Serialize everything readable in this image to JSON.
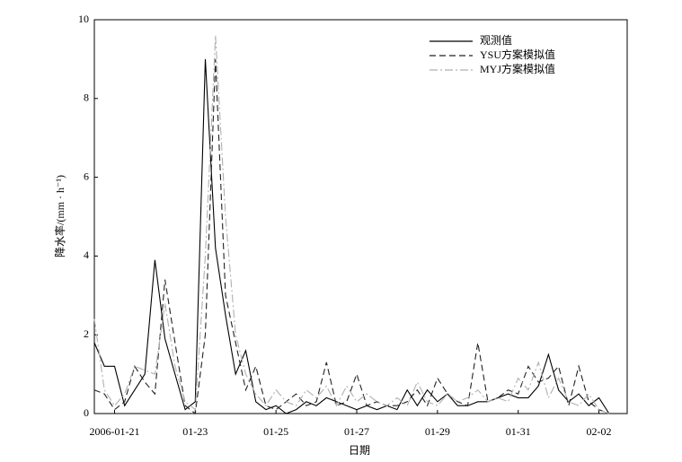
{
  "chart_data": {
    "type": "line",
    "xlabel": "日期",
    "ylabel": "降水率/(mm · h⁻¹)",
    "x": [
      -0.5,
      -0.25,
      0,
      0.25,
      0.5,
      0.75,
      1,
      1.25,
      1.5,
      1.75,
      2,
      2.25,
      2.5,
      2.75,
      3,
      3.25,
      3.5,
      3.75,
      4,
      4.25,
      4.5,
      4.75,
      5,
      5.25,
      5.5,
      5.75,
      6,
      6.25,
      6.5,
      6.75,
      7,
      7.25,
      7.5,
      7.75,
      8,
      8.25,
      8.5,
      8.75,
      9,
      9.25,
      9.5,
      9.75,
      10,
      10.25,
      10.5,
      10.75,
      11,
      11.25,
      11.5,
      11.75,
      12,
      12.25
    ],
    "series": [
      {
        "name": "观测值",
        "color": "#000000",
        "linestyle": "solid",
        "values": [
          1.8,
          1.2,
          1.2,
          0.2,
          0.6,
          1.0,
          3.9,
          1.9,
          1.0,
          0.1,
          0.3,
          9.0,
          4.2,
          2.5,
          1.0,
          1.6,
          0.3,
          0.1,
          0.2,
          0.0,
          0.1,
          0.3,
          0.2,
          0.4,
          0.3,
          0.2,
          0.1,
          0.2,
          0.1,
          0.2,
          0.1,
          0.6,
          0.2,
          0.6,
          0.3,
          0.5,
          0.2,
          0.2,
          0.3,
          0.3,
          0.4,
          0.5,
          0.4,
          0.4,
          0.7,
          1.5,
          0.6,
          0.3,
          0.5,
          0.2,
          0.4,
          0.0
        ]
      },
      {
        "name": "YSU方案模拟值",
        "color": "#222222",
        "linestyle": "dashed",
        "values": [
          0.6,
          0.5,
          0.1,
          0.3,
          1.2,
          0.8,
          0.5,
          3.4,
          1.8,
          0.2,
          0.0,
          2.0,
          9.0,
          3.0,
          1.8,
          0.6,
          1.2,
          0.2,
          0.1,
          0.3,
          0.5,
          0.2,
          0.3,
          1.3,
          0.2,
          0.3,
          1.0,
          0.2,
          0.3,
          0.2,
          0.2,
          0.3,
          0.6,
          0.2,
          0.9,
          0.5,
          0.3,
          0.2,
          1.8,
          0.3,
          0.4,
          0.6,
          0.5,
          1.2,
          0.8,
          0.9,
          1.2,
          0.2,
          1.2,
          0.3,
          0.1,
          0.0
        ]
      },
      {
        "name": "MYJ方案模拟值",
        "color": "#b0b0b0",
        "linestyle": "dashdot",
        "values": [
          2.4,
          0.6,
          0.2,
          0.5,
          1.2,
          1.1,
          1.0,
          2.8,
          1.2,
          0.3,
          0.1,
          4.0,
          9.6,
          5.0,
          2.0,
          1.0,
          0.5,
          0.2,
          0.6,
          0.3,
          0.2,
          0.6,
          0.4,
          0.7,
          0.2,
          0.7,
          0.3,
          0.5,
          0.3,
          0.2,
          0.4,
          0.2,
          0.8,
          0.3,
          0.2,
          0.5,
          0.3,
          0.4,
          0.6,
          0.3,
          0.4,
          0.3,
          0.9,
          0.6,
          1.3,
          0.4,
          0.9,
          0.3,
          0.2,
          0.5,
          0.1,
          0.0
        ]
      }
    ],
    "xlim": [
      -0.5,
      12.7
    ],
    "xticks": [
      {
        "value": 0,
        "label": "2006-01-21"
      },
      {
        "value": 2,
        "label": "01-23"
      },
      {
        "value": 4,
        "label": "01-25"
      },
      {
        "value": 6,
        "label": "01-27"
      },
      {
        "value": 8,
        "label": "01-29"
      },
      {
        "value": 10,
        "label": "01-31"
      },
      {
        "value": 12,
        "label": "02-02"
      }
    ],
    "ylim": [
      0,
      10
    ],
    "yticks": [
      0,
      2,
      4,
      6,
      8,
      10
    ],
    "legend": "upper right"
  }
}
